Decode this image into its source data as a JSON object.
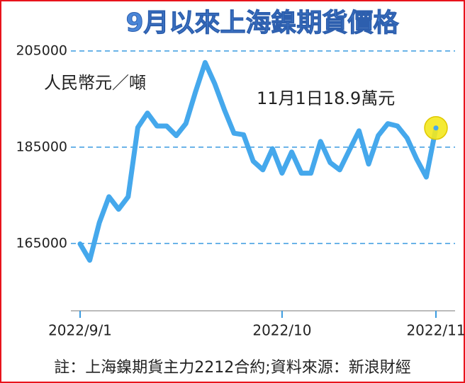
{
  "chart_data": {
    "type": "line",
    "title": "9月以來上海鎳期貨價格",
    "y_label": "人民幣元／噸",
    "annotation": "11月1日18.9萬元",
    "note": "註：上海鎳期貨主力2212合約;資料來源：新浪財經",
    "categories": [
      "2022/9/1",
      null,
      null,
      null,
      null,
      null,
      null,
      null,
      null,
      null,
      null,
      null,
      null,
      null,
      null,
      null,
      null,
      null,
      null,
      null,
      null,
      "2022/10",
      null,
      null,
      null,
      null,
      null,
      null,
      null,
      null,
      null,
      null,
      null,
      null,
      null,
      null,
      null,
      "2022/11"
    ],
    "values": [
      164900,
      161500,
      169300,
      174700,
      172100,
      174700,
      189100,
      192100,
      189400,
      189400,
      187400,
      189900,
      196500,
      202600,
      198200,
      192800,
      187900,
      187600,
      182100,
      180300,
      184700,
      179600,
      184000,
      179600,
      179600,
      186200,
      181800,
      180300,
      184400,
      188400,
      181500,
      187400,
      189900,
      189400,
      186900,
      182500,
      178800,
      189000
    ],
    "color": "#45a8ec",
    "highlight_color": "#f3e81e",
    "ylim": [
      151000,
      205000
    ],
    "yticks": [
      165000,
      185000,
      205000
    ],
    "grid": true
  }
}
